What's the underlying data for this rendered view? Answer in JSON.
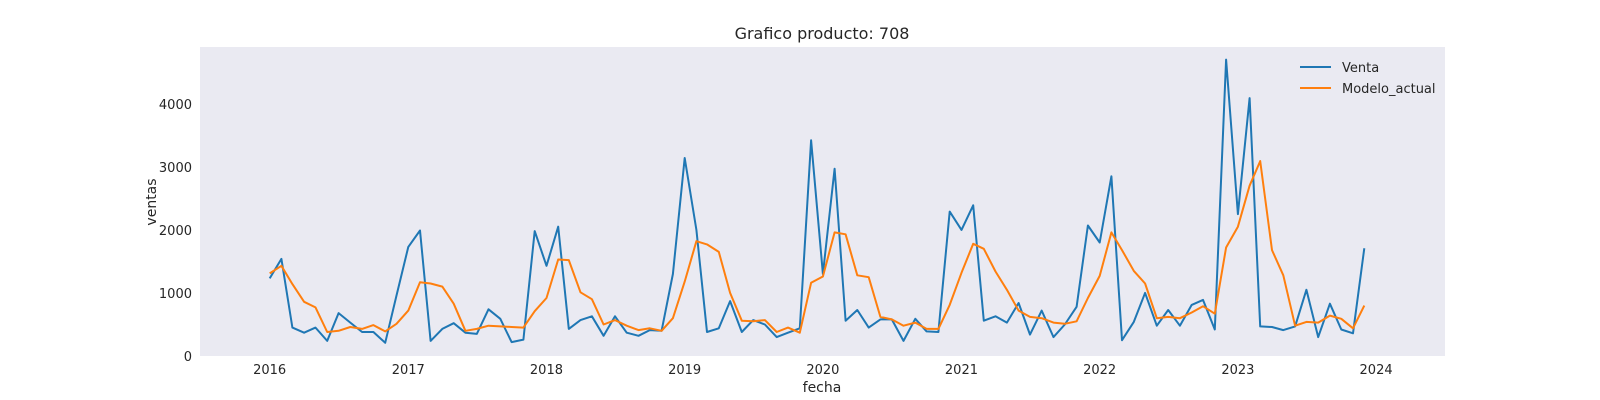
{
  "chart_data": {
    "type": "line",
    "title": "Grafico producto: 708",
    "xlabel": "fecha",
    "ylabel": "ventas",
    "xlim": [
      "2015-07-01",
      "2024-07-01"
    ],
    "ylim": [
      0,
      4900
    ],
    "x_ticks": [
      "2016",
      "2017",
      "2018",
      "2019",
      "2020",
      "2021",
      "2022",
      "2023",
      "2024"
    ],
    "y_ticks": [
      0,
      1000,
      2000,
      3000,
      4000
    ],
    "grid": false,
    "legend_position": "top-right",
    "background": "#eaeaf2",
    "x": [
      "2016-01",
      "2016-02",
      "2016-03",
      "2016-04",
      "2016-05",
      "2016-06",
      "2016-07",
      "2016-08",
      "2016-09",
      "2016-10",
      "2016-11",
      "2016-12",
      "2017-01",
      "2017-02",
      "2017-03",
      "2017-04",
      "2017-05",
      "2017-06",
      "2017-07",
      "2017-08",
      "2017-09",
      "2017-10",
      "2017-11",
      "2017-12",
      "2018-01",
      "2018-02",
      "2018-03",
      "2018-04",
      "2018-05",
      "2018-06",
      "2018-07",
      "2018-08",
      "2018-09",
      "2018-10",
      "2018-11",
      "2018-12",
      "2019-01",
      "2019-02",
      "2019-03",
      "2019-04",
      "2019-05",
      "2019-06",
      "2019-07",
      "2019-08",
      "2019-09",
      "2019-10",
      "2019-11",
      "2019-12",
      "2020-01",
      "2020-02",
      "2020-03",
      "2020-04",
      "2020-05",
      "2020-06",
      "2020-07",
      "2020-08",
      "2020-09",
      "2020-10",
      "2020-11",
      "2020-12",
      "2021-01",
      "2021-02",
      "2021-03",
      "2021-04",
      "2021-05",
      "2021-06",
      "2021-07",
      "2021-08",
      "2021-09",
      "2021-10",
      "2021-11",
      "2021-12",
      "2022-01",
      "2022-02",
      "2022-03",
      "2022-04",
      "2022-05",
      "2022-06",
      "2022-07",
      "2022-08",
      "2022-09",
      "2022-10",
      "2022-11",
      "2022-12",
      "2023-01",
      "2023-02",
      "2023-03",
      "2023-04",
      "2023-05",
      "2023-06",
      "2023-07",
      "2023-08",
      "2023-09",
      "2023-10",
      "2023-11",
      "2023-12"
    ],
    "series": [
      {
        "name": "Venta",
        "color": "#1f77b4",
        "values": [
          1230,
          1540,
          450,
          370,
          450,
          240,
          680,
          530,
          380,
          380,
          210,
          960,
          1730,
          1990,
          240,
          430,
          520,
          370,
          350,
          740,
          590,
          220,
          260,
          1980,
          1430,
          2050,
          430,
          570,
          630,
          320,
          630,
          370,
          320,
          410,
          400,
          1300,
          3140,
          2000,
          380,
          440,
          870,
          380,
          570,
          500,
          300,
          370,
          440,
          3420,
          1300,
          2970,
          560,
          730,
          450,
          580,
          580,
          240,
          590,
          390,
          380,
          2290,
          2000,
          2390,
          560,
          630,
          530,
          840,
          340,
          720,
          300,
          500,
          780,
          2070,
          1800,
          2850,
          250,
          540,
          1000,
          480,
          730,
          480,
          810,
          890,
          420,
          4700,
          2250,
          4090,
          470,
          460,
          410,
          470,
          1050,
          300,
          830,
          420,
          360,
          1710
        ]
      },
      {
        "name": "Modelo_actual",
        "color": "#ff7f0e",
        "values": [
          1310,
          1430,
          1140,
          860,
          770,
          380,
          400,
          460,
          430,
          490,
          390,
          510,
          720,
          1170,
          1150,
          1100,
          830,
          400,
          430,
          480,
          470,
          460,
          450,
          710,
          920,
          1530,
          1520,
          1010,
          900,
          500,
          570,
          480,
          410,
          440,
          400,
          600,
          1180,
          1820,
          1770,
          1650,
          1000,
          560,
          550,
          570,
          380,
          450,
          370,
          1160,
          1260,
          1960,
          1930,
          1280,
          1250,
          620,
          580,
          480,
          530,
          430,
          430,
          810,
          1320,
          1780,
          1700,
          1340,
          1050,
          720,
          620,
          600,
          530,
          510,
          550,
          920,
          1270,
          1960,
          1680,
          1350,
          1150,
          600,
          620,
          600,
          690,
          790,
          670,
          1720,
          2050,
          2700,
          3090,
          1680,
          1280,
          480,
          540,
          530,
          640,
          590,
          440,
          800
        ]
      }
    ]
  }
}
